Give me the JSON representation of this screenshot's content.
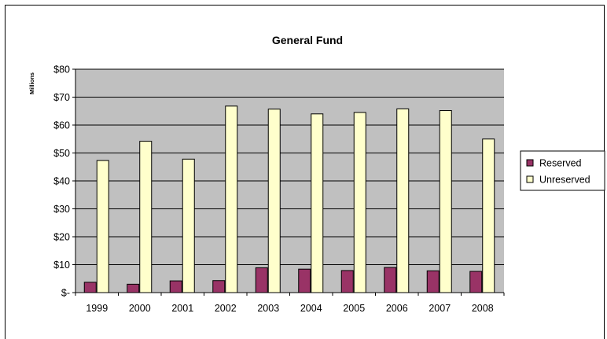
{
  "chart_data": {
    "type": "bar",
    "title": "General Fund",
    "ylabel": "Millions",
    "xlabel": "",
    "categories": [
      "1999",
      "2000",
      "2001",
      "2002",
      "2003",
      "2004",
      "2005",
      "2006",
      "2007",
      "2008"
    ],
    "series": [
      {
        "name": "Reserved",
        "color": "#993366",
        "values": [
          3.7,
          3.0,
          4.2,
          4.3,
          8.9,
          8.4,
          7.9,
          9.0,
          7.8,
          7.6
        ]
      },
      {
        "name": "Unreserved",
        "color": "#FFFFCC",
        "values": [
          47.3,
          54.2,
          47.8,
          66.8,
          65.7,
          64.0,
          64.5,
          65.8,
          65.2,
          55.0
        ]
      }
    ],
    "ylim": [
      0,
      80
    ],
    "yticks": [
      0,
      10,
      20,
      30,
      40,
      50,
      60,
      70,
      80
    ],
    "ytick_labels": [
      "$-",
      "$10",
      "$20",
      "$30",
      "$40",
      "$50",
      "$60",
      "$70",
      "$80"
    ],
    "grid": true,
    "plot_background": "#C0C0C0",
    "legend_position": "right"
  }
}
